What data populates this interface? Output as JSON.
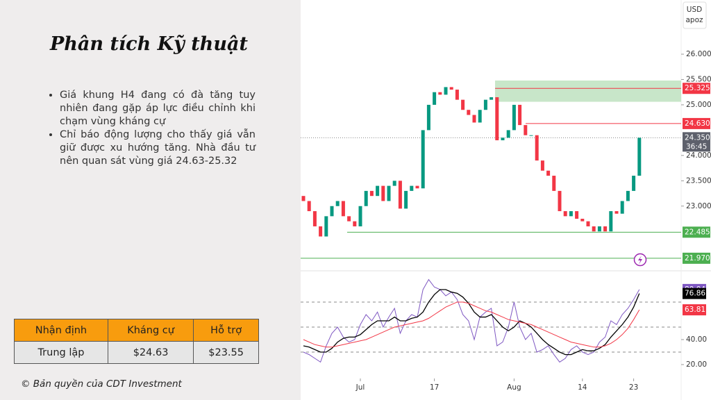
{
  "slide": {
    "title": "Phân tích Kỹ thuật",
    "bullets": [
      "Giá khung H4 đang có đà tăng tuy nhiên đang gặp áp lực điều chỉnh khi chạm vùng kháng cự",
      "Chỉ báo động lượng cho thấy giá vẫn giữ được xu hướng tăng. Nhà đầu tư nên quan sát vùng giá 24.63-25.32"
    ],
    "table": {
      "header": [
        "Nhận định",
        "Kháng cự",
        "Hỗ trợ"
      ],
      "rows": [
        [
          "Trung lập",
          "$24.63",
          "$23.55"
        ]
      ]
    },
    "copyright": "© Bản quyền của CDT Investment"
  },
  "chart_data": {
    "type": "candlestick",
    "currency": "USD",
    "unit": "apoz",
    "up_color": "#089981",
    "down_color": "#f23645",
    "open": [
      23.2,
      23.1,
      22.9,
      22.6,
      22.4,
      22.8,
      23.0,
      23.1,
      22.8,
      22.7,
      22.6,
      23.0,
      23.3,
      23.2,
      23.4,
      23.1,
      23.4,
      23.5,
      22.95,
      23.3,
      23.4,
      23.35,
      24.5,
      25.0,
      25.25,
      25.2,
      25.35,
      25.3,
      25.1,
      24.9,
      24.8,
      24.65,
      24.9,
      25.1,
      25.15,
      24.3,
      24.35,
      24.5,
      25.0,
      24.6,
      24.4,
      24.4,
      23.9,
      23.7,
      23.6,
      23.3,
      22.9,
      22.8,
      22.9,
      22.75,
      22.7,
      22.6,
      22.5,
      22.6,
      22.5,
      22.9,
      22.85,
      23.1,
      23.3,
      23.6
    ],
    "close": [
      23.1,
      22.9,
      22.6,
      22.4,
      22.8,
      23.0,
      23.1,
      22.8,
      22.7,
      22.6,
      23.0,
      23.3,
      23.2,
      23.4,
      23.1,
      23.4,
      23.5,
      22.95,
      23.3,
      23.4,
      23.35,
      24.5,
      25.0,
      25.25,
      25.2,
      25.35,
      25.3,
      25.1,
      24.9,
      24.8,
      24.65,
      24.9,
      25.1,
      25.15,
      24.3,
      24.35,
      24.5,
      25.0,
      24.6,
      24.4,
      24.4,
      23.9,
      23.7,
      23.6,
      23.3,
      22.9,
      22.8,
      22.9,
      22.75,
      22.7,
      22.6,
      22.5,
      22.6,
      22.5,
      22.9,
      22.85,
      23.1,
      23.3,
      23.6,
      24.35
    ],
    "xticks": [
      {
        "value": 10,
        "label": "Jul"
      },
      {
        "value": 23,
        "label": "17"
      },
      {
        "value": 37,
        "label": "Aug"
      },
      {
        "value": 49,
        "label": "14"
      },
      {
        "value": 58,
        "label": "23"
      }
    ],
    "ylim": [
      21.79,
      27.07
    ],
    "yticks": [
      {
        "value": 26,
        "label": "26.000"
      },
      {
        "value": 25.5,
        "label": "25.500"
      },
      {
        "value": 25,
        "label": "25.000"
      },
      {
        "value": 24,
        "label": "24.000"
      },
      {
        "value": 23.5,
        "label": "23.500"
      },
      {
        "value": 23,
        "label": "23.000"
      }
    ],
    "zone": {
      "from": 25.06,
      "to": 25.48,
      "color": "#c8e6c9"
    },
    "levels": [
      {
        "value": 25.325,
        "color": "#f23645"
      },
      {
        "value": 24.63,
        "label": "24.630",
        "color": "#f23645"
      },
      {
        "value": 22.485,
        "color": "#4caf50"
      },
      {
        "value": 21.97,
        "label": "21.970",
        "color": "#4caf50"
      }
    ],
    "last_price": {
      "value": 24.35,
      "label": "24.350"
    },
    "countdown": "36:45",
    "oscillator": {
      "ylim": [
        8.9,
        92.2
      ],
      "yticks": [
        {
          "value": 40,
          "label": "40.00"
        },
        {
          "value": 20,
          "label": "20.00"
        }
      ],
      "levels": [
        70,
        50,
        30
      ],
      "series": [
        {
          "color": "#7e57c2",
          "values": [
            30,
            28,
            25,
            22,
            35,
            45,
            50,
            42,
            38,
            40,
            52,
            60,
            55,
            62,
            50,
            58,
            65,
            45,
            55,
            60,
            58,
            80,
            88,
            82,
            80,
            75,
            78,
            72,
            60,
            55,
            40,
            58,
            62,
            65,
            35,
            38,
            50,
            70,
            50,
            40,
            45,
            30,
            32,
            35,
            28,
            22,
            25,
            32,
            35,
            30,
            28,
            30,
            38,
            42,
            55,
            52,
            60,
            65,
            72,
            80.04
          ]
        },
        {
          "color": "#000000",
          "values": [
            35,
            34,
            32,
            30,
            30,
            33,
            38,
            41,
            42,
            42,
            44,
            48,
            52,
            55,
            55,
            55,
            58,
            55,
            55,
            57,
            58,
            62,
            70,
            76,
            80,
            80,
            78,
            77,
            74,
            69,
            62,
            58,
            58,
            60,
            55,
            50,
            47,
            50,
            55,
            53,
            50,
            45,
            40,
            36,
            33,
            30,
            28,
            28,
            30,
            32,
            31,
            31,
            33,
            36,
            42,
            47,
            52,
            58,
            66,
            76.86
          ]
        },
        {
          "color": "#f23645",
          "values": [
            40,
            38,
            36,
            35,
            34,
            34,
            35,
            36,
            37,
            38,
            39,
            40,
            42,
            44,
            46,
            48,
            50,
            51,
            52,
            53,
            54,
            55,
            57,
            60,
            63,
            66,
            68,
            70,
            70,
            69,
            67,
            65,
            63,
            62,
            60,
            58,
            56,
            55,
            54,
            53,
            52,
            50,
            48,
            46,
            44,
            42,
            40,
            38,
            37,
            36,
            35,
            34,
            34,
            35,
            37,
            40,
            44,
            49,
            56,
            63.81
          ]
        }
      ]
    }
  }
}
